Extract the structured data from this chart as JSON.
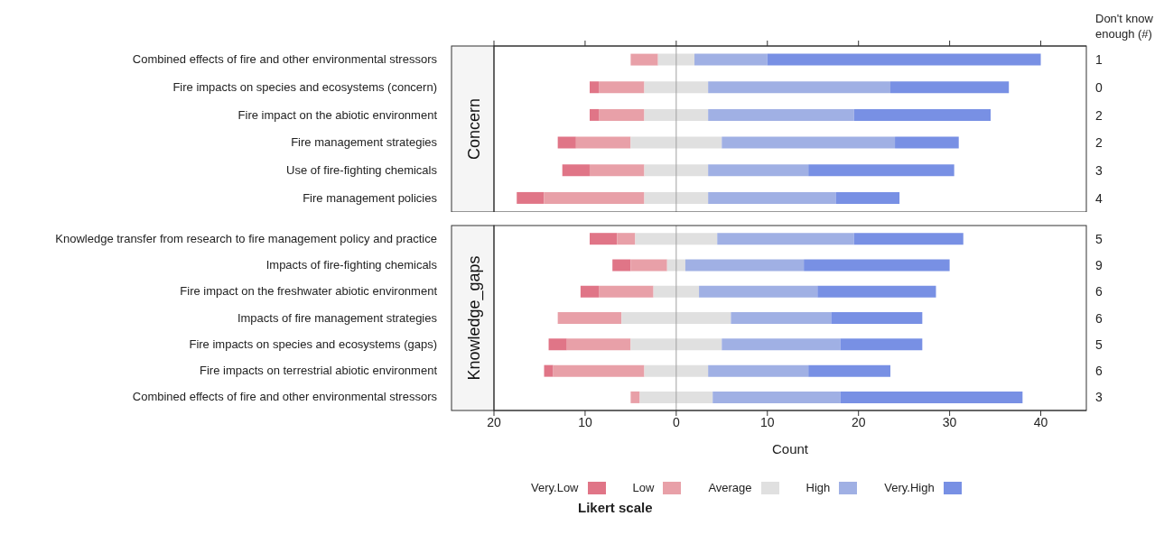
{
  "chart_data": [
    {
      "type": "bar",
      "orientation": "horizontal",
      "title": "Concern",
      "y2label": "Don't know enough (#)",
      "tick_labels": "y",
      "xlim": [
        -20,
        45
      ],
      "xticks": [
        -20,
        -10,
        0,
        10,
        20,
        30,
        40
      ],
      "categories": [
        "Combined effects of fire and other environmental stressors",
        "Fire impacts on species and ecosystems (concern)",
        "Fire impact on the abiotic environment",
        "Fire management strategies",
        "Use of fire-fighting chemicals",
        "Fire management policies"
      ],
      "y2_categories": [
        "1",
        "0",
        "2",
        "2",
        "3",
        "4"
      ],
      "ref_lines": [
        {
          "axis": "x",
          "value": 0,
          "color": "#a0a0a0"
        }
      ],
      "series": [
        {
          "color": "#e07587",
          "values": [
            null,
            1,
            1,
            2,
            3,
            3
          ],
          "base": [
            null,
            -9.5,
            -9.5,
            -13,
            -12.5,
            -17.5
          ]
        },
        {
          "color": "#e8a0a8",
          "values": [
            3,
            5,
            5,
            6,
            6,
            11
          ],
          "base": [
            -5,
            -8.5,
            -8.5,
            -11,
            -9.5,
            -14.5
          ]
        },
        {
          "color": "#e0e0e0",
          "values": [
            4,
            7,
            7,
            10,
            7,
            7
          ],
          "base": [
            -2,
            -3.5,
            -3.5,
            -5,
            -3.5,
            -3.5
          ]
        },
        {
          "color": "#a0b0e4",
          "values": [
            8,
            20,
            16,
            19,
            11,
            14
          ],
          "base": [
            2,
            3.5,
            3.5,
            5,
            3.5,
            3.5
          ]
        },
        {
          "color": "#7890e4",
          "values": [
            30,
            13,
            15,
            7,
            16,
            7
          ],
          "base": [
            10,
            23.5,
            19.5,
            24,
            14.5,
            17.5
          ]
        }
      ]
    },
    {
      "type": "bar",
      "orientation": "horizontal",
      "title": "Knowledge_gaps",
      "xlabel": "Count",
      "legend": "bottom",
      "legend_title": "Likert scale",
      "xlim": [
        -20,
        45
      ],
      "xticks": [
        {
          "value": -20,
          "label": "20"
        },
        {
          "value": -10,
          "label": "10"
        },
        0,
        10,
        20,
        30,
        40
      ],
      "categories": [
        "Knowledge transfer from research to fire management policy and practice",
        "Impacts of fire-fighting chemicals",
        "Fire impact on the freshwater abiotic environment",
        "Impacts of fire management strategies",
        "Fire impacts on species and ecosystems (gaps)",
        "Fire impacts on terrestrial abiotic environment",
        "Combined effects of fire and other environmental stressors"
      ],
      "y2_categories": [
        "5",
        "9",
        "6",
        "6",
        "5",
        "6",
        "3"
      ],
      "ref_lines": [
        {
          "axis": "x",
          "value": 0,
          "color": "#a0a0a0"
        }
      ],
      "series": [
        {
          "name": "Very.Low",
          "color": "#e07587",
          "values": [
            3,
            2,
            2,
            null,
            2,
            1,
            null
          ],
          "base": [
            -9.5,
            -7,
            -10.5,
            null,
            -14,
            -14.5,
            null
          ]
        },
        {
          "name": "Low",
          "color": "#e8a0a8",
          "values": [
            2,
            4,
            6,
            7,
            7,
            10,
            1
          ],
          "base": [
            -6.5,
            -5,
            -8.5,
            -13,
            -12,
            -13.5,
            -5
          ]
        },
        {
          "name": "Average",
          "color": "#e0e0e0",
          "values": [
            9,
            2,
            5,
            12,
            10,
            7,
            8
          ],
          "base": [
            -4.5,
            -1,
            -2.5,
            -6,
            -5,
            -3.5,
            -4
          ]
        },
        {
          "name": "High",
          "color": "#a0b0e4",
          "values": [
            15,
            13,
            13,
            11,
            13,
            11,
            14
          ],
          "base": [
            4.5,
            1,
            2.5,
            6,
            5,
            3.5,
            4
          ]
        },
        {
          "name": "Very.High",
          "color": "#7890e4",
          "values": [
            12,
            16,
            13,
            10,
            9,
            9,
            20
          ],
          "base": [
            19.5,
            14,
            15.5,
            17,
            18,
            14.5,
            18
          ]
        }
      ]
    }
  ]
}
